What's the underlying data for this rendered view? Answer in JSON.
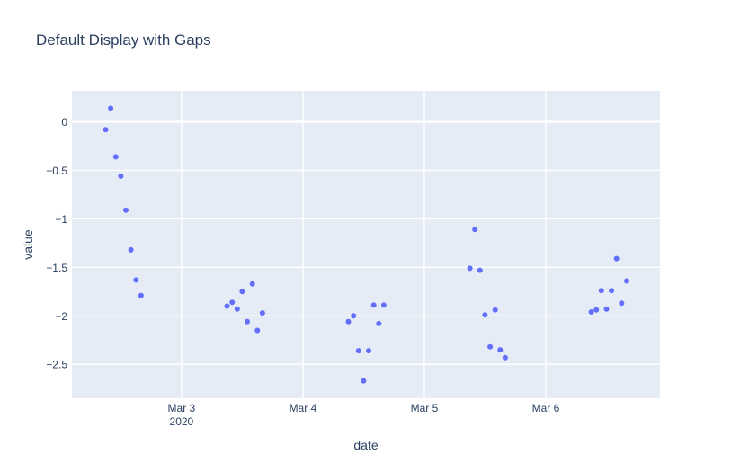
{
  "page": {
    "paper_bgcolor": "#ffffff"
  },
  "chart_data": {
    "type": "scatter",
    "title": "Default Display with Gaps",
    "xlabel": "date",
    "ylabel": "value",
    "legend": false,
    "grid": true,
    "plot_bgcolor": "#e5ecf6",
    "gridline_color": "#ffffff",
    "marker_color": "#636efa",
    "text_color": "#2a3f5f",
    "x_range": [
      "2020-03-02 02:20",
      "2020-03-06 22:35"
    ],
    "y_range": [
      -2.85,
      0.32
    ],
    "x_ticks": [
      {
        "pos": "2020-03-03 00:00",
        "label": "Mar 3",
        "sublabel": "2020"
      },
      {
        "pos": "2020-03-04 00:00",
        "label": "Mar 4",
        "sublabel": ""
      },
      {
        "pos": "2020-03-05 00:00",
        "label": "Mar 5",
        "sublabel": ""
      },
      {
        "pos": "2020-03-06 00:00",
        "label": "Mar 6",
        "sublabel": ""
      }
    ],
    "y_ticks": [
      {
        "value": 0,
        "label": "0"
      },
      {
        "value": -0.5,
        "label": "−0.5"
      },
      {
        "value": -1,
        "label": "−1"
      },
      {
        "value": -1.5,
        "label": "−1.5"
      },
      {
        "value": -2,
        "label": "−2"
      },
      {
        "value": -2.5,
        "label": "−2.5"
      }
    ],
    "series_name": "value",
    "points": [
      {
        "date": "2020-03-02 09:00",
        "value": -0.08
      },
      {
        "date": "2020-03-02 10:00",
        "value": 0.14
      },
      {
        "date": "2020-03-02 11:00",
        "value": -0.36
      },
      {
        "date": "2020-03-02 12:00",
        "value": -0.56
      },
      {
        "date": "2020-03-02 13:00",
        "value": -0.91
      },
      {
        "date": "2020-03-02 14:00",
        "value": -1.32
      },
      {
        "date": "2020-03-02 15:00",
        "value": -1.63
      },
      {
        "date": "2020-03-02 16:00",
        "value": -1.79
      },
      {
        "date": "2020-03-03 09:00",
        "value": -1.9
      },
      {
        "date": "2020-03-03 10:00",
        "value": -1.86
      },
      {
        "date": "2020-03-03 11:00",
        "value": -1.93
      },
      {
        "date": "2020-03-03 12:00",
        "value": -1.75
      },
      {
        "date": "2020-03-03 13:00",
        "value": -2.06
      },
      {
        "date": "2020-03-03 14:00",
        "value": -1.67
      },
      {
        "date": "2020-03-03 15:00",
        "value": -2.15
      },
      {
        "date": "2020-03-03 16:00",
        "value": -1.97
      },
      {
        "date": "2020-03-04 09:00",
        "value": -2.06
      },
      {
        "date": "2020-03-04 10:00",
        "value": -2.0
      },
      {
        "date": "2020-03-04 11:00",
        "value": -2.36
      },
      {
        "date": "2020-03-04 12:00",
        "value": -2.67
      },
      {
        "date": "2020-03-04 13:00",
        "value": -2.36
      },
      {
        "date": "2020-03-04 14:00",
        "value": -1.89
      },
      {
        "date": "2020-03-04 15:00",
        "value": -2.08
      },
      {
        "date": "2020-03-04 16:00",
        "value": -1.89
      },
      {
        "date": "2020-03-05 09:00",
        "value": -1.51
      },
      {
        "date": "2020-03-05 10:00",
        "value": -1.11
      },
      {
        "date": "2020-03-05 11:00",
        "value": -1.53
      },
      {
        "date": "2020-03-05 12:00",
        "value": -1.99
      },
      {
        "date": "2020-03-05 13:00",
        "value": -2.32
      },
      {
        "date": "2020-03-05 14:00",
        "value": -1.94
      },
      {
        "date": "2020-03-05 15:00",
        "value": -2.35
      },
      {
        "date": "2020-03-05 16:00",
        "value": -2.43
      },
      {
        "date": "2020-03-06 09:00",
        "value": -1.96
      },
      {
        "date": "2020-03-06 10:00",
        "value": -1.94
      },
      {
        "date": "2020-03-06 11:00",
        "value": -1.74
      },
      {
        "date": "2020-03-06 12:00",
        "value": -1.93
      },
      {
        "date": "2020-03-06 13:00",
        "value": -1.74
      },
      {
        "date": "2020-03-06 14:00",
        "value": -1.41
      },
      {
        "date": "2020-03-06 15:00",
        "value": -1.87
      },
      {
        "date": "2020-03-06 16:00",
        "value": -1.64
      }
    ]
  }
}
